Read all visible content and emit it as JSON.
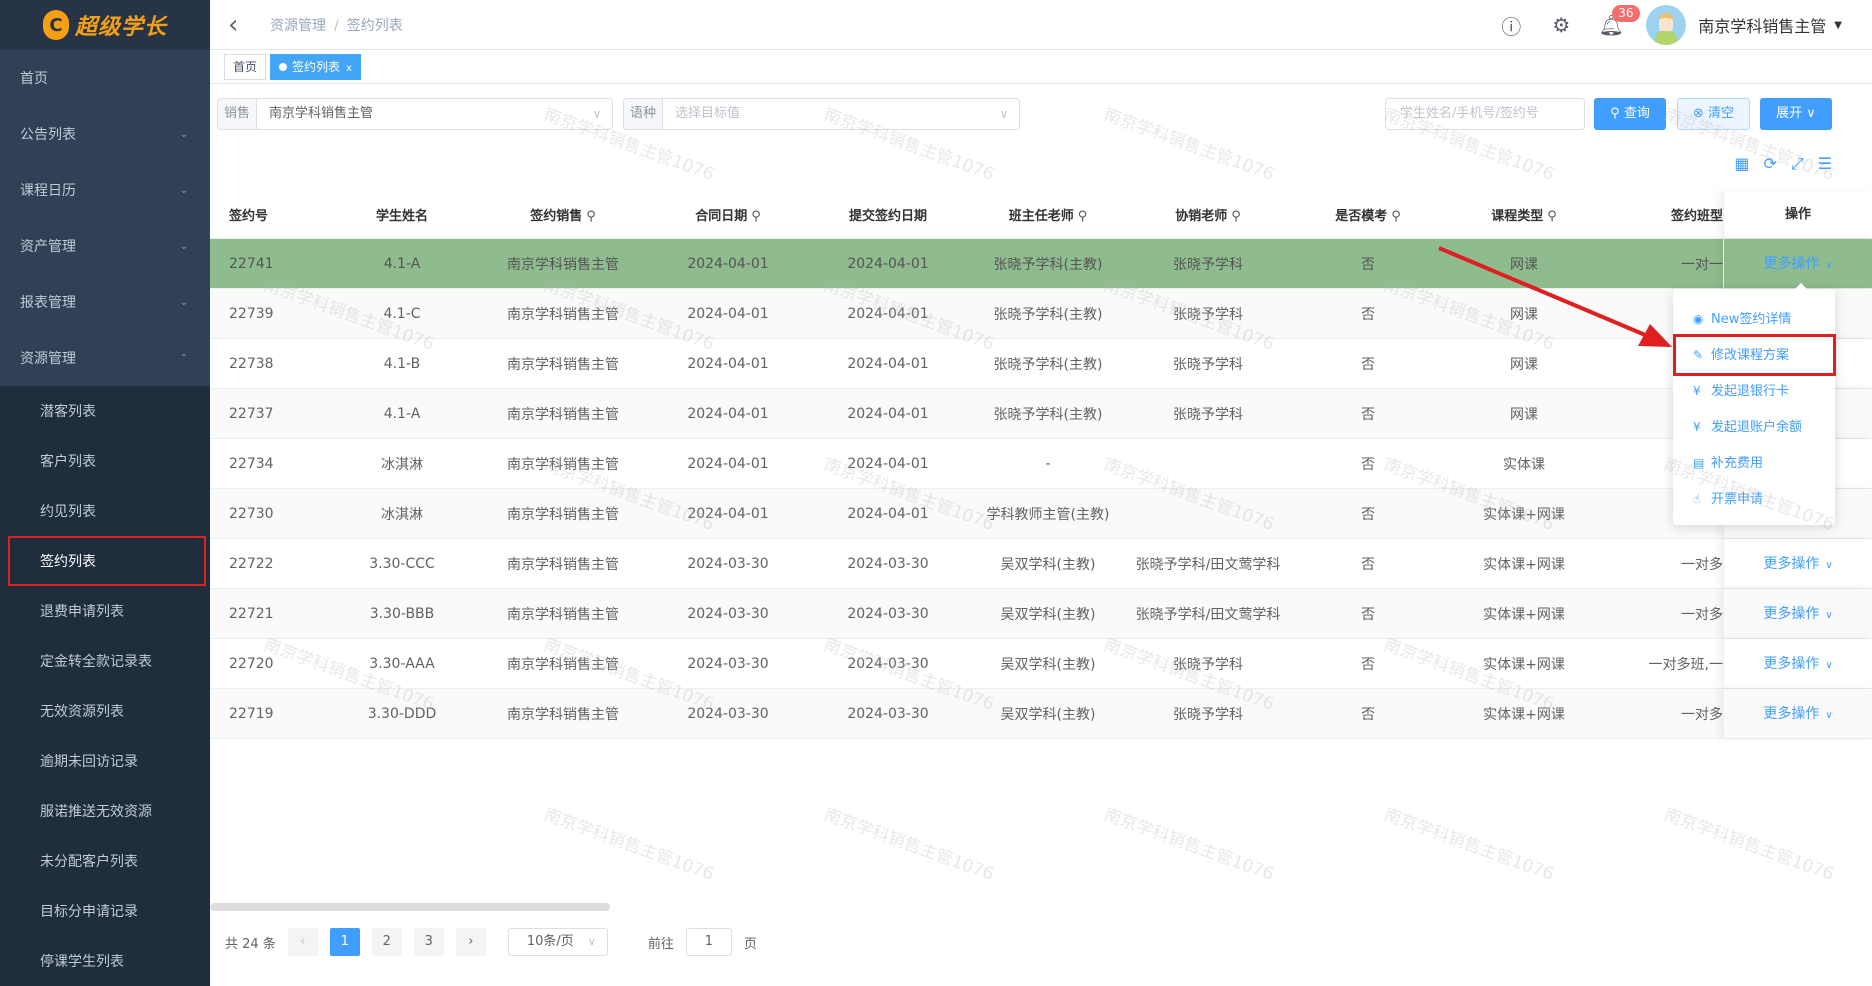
{
  "logo": {
    "mark": "C",
    "text": "超级学长"
  },
  "sidebar": {
    "items": [
      {
        "label": "首页"
      },
      {
        "label": "公告列表",
        "chev": "⌄"
      },
      {
        "label": "课程日历",
        "chev": "⌄"
      },
      {
        "label": "资产管理",
        "chev": "⌄"
      },
      {
        "label": "报表管理",
        "chev": "⌄"
      },
      {
        "label": "资源管理",
        "chev": "⌃"
      }
    ],
    "sub": [
      {
        "label": "潜客列表"
      },
      {
        "label": "客户列表"
      },
      {
        "label": "约见列表"
      },
      {
        "label": "签约列表"
      },
      {
        "label": "退费申请列表"
      },
      {
        "label": "定金转全款记录表"
      },
      {
        "label": "无效资源列表"
      },
      {
        "label": "逾期未回访记录"
      },
      {
        "label": "服诺推送无效资源"
      },
      {
        "label": "未分配客户列表"
      },
      {
        "label": "目标分申请记录"
      },
      {
        "label": "停课学生列表"
      }
    ]
  },
  "header": {
    "breadcrumb": [
      "资源管理",
      "签约列表"
    ],
    "notifications": "36",
    "user": "南京学科销售主管"
  },
  "tabs": [
    {
      "label": "首页"
    },
    {
      "label": "签约列表",
      "close": "x"
    }
  ],
  "filters": {
    "sales_label": "销售",
    "sales_value": "南京学科销售主管",
    "lang_label": "语种",
    "lang_placeholder": "选择目标值",
    "search_placeholder": "学生姓名/手机号/签约号",
    "query": "查询",
    "clear": "清空",
    "expand": "展开"
  },
  "table": {
    "columns": [
      "签约号",
      "学生姓名",
      "签约销售",
      "合同日期",
      "提交签约日期",
      "班主任老师",
      "协销老师",
      "是否模考",
      "课程类型",
      "签约班型",
      "操作"
    ],
    "searchable": [
      false,
      false,
      true,
      true,
      false,
      true,
      true,
      true,
      true,
      false,
      false
    ],
    "rows": [
      [
        "22741",
        "4.1-A",
        "南京学科销售主管",
        "2024-04-01",
        "2024-04-01",
        "张晓予学科(主教)",
        "张晓予学科",
        "否",
        "网课",
        "一对一",
        "更多操作"
      ],
      [
        "22739",
        "4.1-C",
        "南京学科销售主管",
        "2024-04-01",
        "2024-04-01",
        "张晓予学科(主教)",
        "张晓予学科",
        "否",
        "网课",
        "",
        ""
      ],
      [
        "22738",
        "4.1-B",
        "南京学科销售主管",
        "2024-04-01",
        "2024-04-01",
        "张晓予学科(主教)",
        "张晓予学科",
        "否",
        "网课",
        "",
        ""
      ],
      [
        "22737",
        "4.1-A",
        "南京学科销售主管",
        "2024-04-01",
        "2024-04-01",
        "张晓予学科(主教)",
        "张晓予学科",
        "否",
        "网课",
        "",
        ""
      ],
      [
        "22734",
        "冰淇淋",
        "南京学科销售主管",
        "2024-04-01",
        "2024-04-01",
        "-",
        "",
        "否",
        "实体课",
        "",
        ""
      ],
      [
        "22730",
        "冰淇淋",
        "南京学科销售主管",
        "2024-04-01",
        "2024-04-01",
        "学科教师主管(主教)",
        "",
        "否",
        "实体课+网课",
        "一对",
        ""
      ],
      [
        "22722",
        "3.30-CCC",
        "南京学科销售主管",
        "2024-03-30",
        "2024-03-30",
        "吴双学科(主教)",
        "张晓予学科/田文莺学科",
        "否",
        "实体课+网课",
        "一对多",
        "更多操作"
      ],
      [
        "22721",
        "3.30-BBB",
        "南京学科销售主管",
        "2024-03-30",
        "2024-03-30",
        "吴双学科(主教)",
        "张晓予学科/田文莺学科",
        "否",
        "实体课+网课",
        "一对多",
        "更多操作"
      ],
      [
        "22720",
        "3.30-AAA",
        "南京学科销售主管",
        "2024-03-30",
        "2024-03-30",
        "吴双学科(主教)",
        "张晓予学科",
        "否",
        "实体课+网课",
        "一对多班,一",
        "更多操作"
      ],
      [
        "22719",
        "3.30-DDD",
        "南京学科销售主管",
        "2024-03-30",
        "2024-03-30",
        "吴双学科(主教)",
        "张晓予学科",
        "否",
        "实体课+网课",
        "一对多",
        "更多操作"
      ]
    ],
    "selected_row": 0,
    "selected_color": "#8fbc8f"
  },
  "menu": [
    {
      "icon": "eye-icon",
      "label": "New签约详情"
    },
    {
      "icon": "edit-icon",
      "label": "修改课程方案",
      "highlighted": true
    },
    {
      "icon": "yuan-icon",
      "label": "发起退银行卡"
    },
    {
      "icon": "yuan-icon",
      "label": "发起退账户余额"
    },
    {
      "icon": "ledger-icon",
      "label": "补充费用"
    },
    {
      "icon": "hand-icon",
      "label": "开票申请"
    }
  ],
  "pagination": {
    "total": "共 24 条",
    "pages": [
      "1",
      "2",
      "3"
    ],
    "current": "1",
    "page_size": "10条/页",
    "goto_label": "前往",
    "goto_value": "1",
    "page_unit": "页"
  },
  "watermark": "南京学科销售主管1076",
  "colors": {
    "primary": "#409eff",
    "sidebar": "#304156",
    "annotation": "#e02020"
  }
}
